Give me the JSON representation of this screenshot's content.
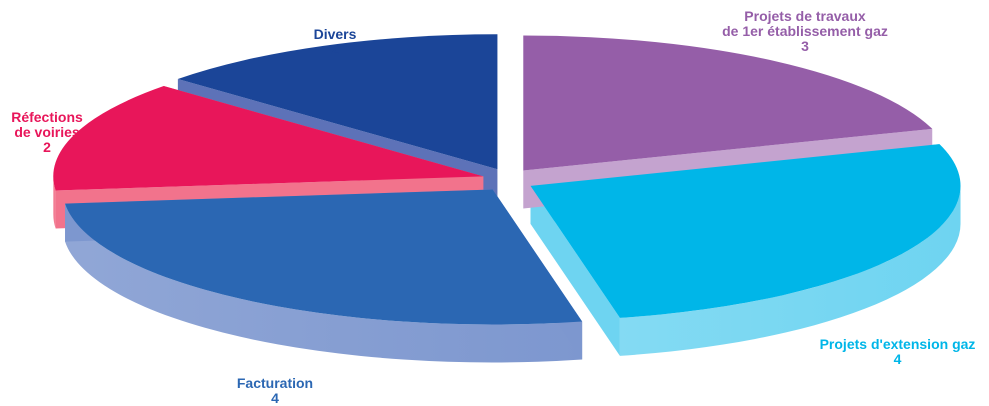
{
  "chart_data": {
    "type": "pie",
    "style": "3d-exploded",
    "slices": [
      {
        "name_lines": [
          "Projets de travaux",
          "de 1er établissement gaz"
        ],
        "value": 3,
        "color": "#955ea8",
        "side_color": "#c4a3cf"
      },
      {
        "name_lines": [
          "Projets d'extension gaz"
        ],
        "value": 4,
        "color": "#00b6e8",
        "side_color": "#6ed4f1"
      },
      {
        "name_lines": [
          "Facturation"
        ],
        "value": 4,
        "color": "#2b67b3",
        "side_color": "#7d97cf"
      },
      {
        "name_lines": [
          "Réfections",
          "de voiries"
        ],
        "value": 2,
        "color": "#e8165a",
        "side_color": "#f2738c"
      },
      {
        "name_lines": [
          "Divers"
        ],
        "value": 2,
        "color": "#1b4598",
        "side_color": "#5d72b8"
      }
    ]
  }
}
